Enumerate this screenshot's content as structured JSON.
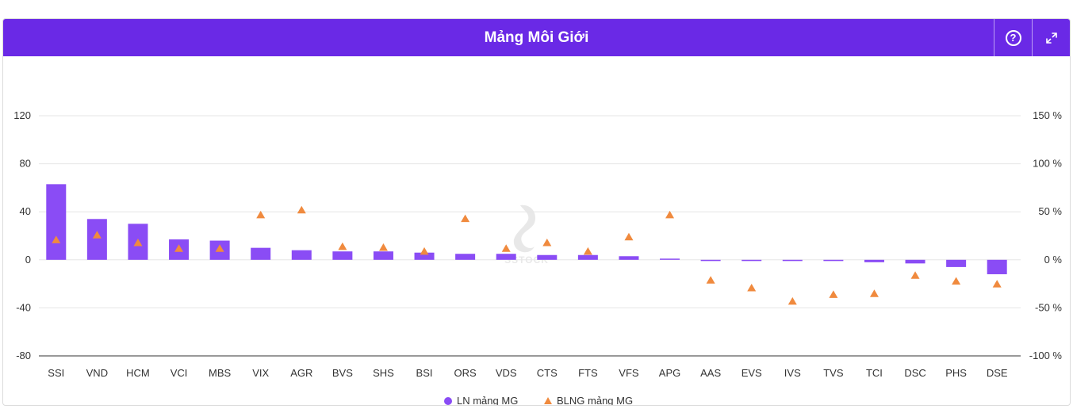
{
  "header": {
    "title": "Mảng Môi Giới",
    "help_icon": "question-circle-icon",
    "expand_icon": "expand-arrows-icon"
  },
  "colors": {
    "header_bg": "#6a29e6",
    "bar": "#8a4cf5",
    "triangle": "#f08a3e"
  },
  "chart_data": {
    "type": "bar",
    "categories": [
      "SSI",
      "VND",
      "HCM",
      "VCI",
      "MBS",
      "VIX",
      "AGR",
      "BVS",
      "SHS",
      "BSI",
      "ORS",
      "VDS",
      "CTS",
      "FTS",
      "VFS",
      "APG",
      "AAS",
      "EVS",
      "IVS",
      "TVS",
      "TCI",
      "DSC",
      "PHS",
      "DSE"
    ],
    "left_axis": {
      "min": -80,
      "max": 120,
      "ticks": [
        -80,
        -40,
        0,
        40,
        80,
        120
      ],
      "tick_labels": [
        "-80",
        "-40",
        "0",
        "40",
        "80",
        "120"
      ]
    },
    "right_axis": {
      "min": -100,
      "max": 150,
      "ticks": [
        -100,
        -50,
        0,
        50,
        100,
        150
      ],
      "tick_labels": [
        "-100 %",
        "-50 %",
        "0 %",
        "50 %",
        "100 %",
        "150 %"
      ]
    },
    "series": [
      {
        "name": "LN mảng MG",
        "type": "bar",
        "axis": "left",
        "values": [
          63,
          34,
          30,
          17,
          16,
          10,
          8,
          7,
          7,
          6,
          5,
          5,
          4,
          4,
          3,
          1,
          -1,
          -1,
          -1,
          -1,
          -2,
          -3,
          -6,
          -12
        ]
      },
      {
        "name": "BLNG mảng MG",
        "type": "scatter",
        "marker": "triangle",
        "axis": "right",
        "values": [
          21,
          26,
          18,
          12,
          12,
          47,
          52,
          14,
          13,
          9,
          43,
          12,
          18,
          9,
          24,
          47,
          -21,
          -29,
          -43,
          -36,
          -35,
          -16,
          -22,
          -25
        ]
      }
    ],
    "legend": [
      "LN mảng MG",
      "BLNG mảng MG"
    ],
    "legend_position": "bottom-center",
    "grid": true,
    "watermark": "SSTOCK"
  }
}
